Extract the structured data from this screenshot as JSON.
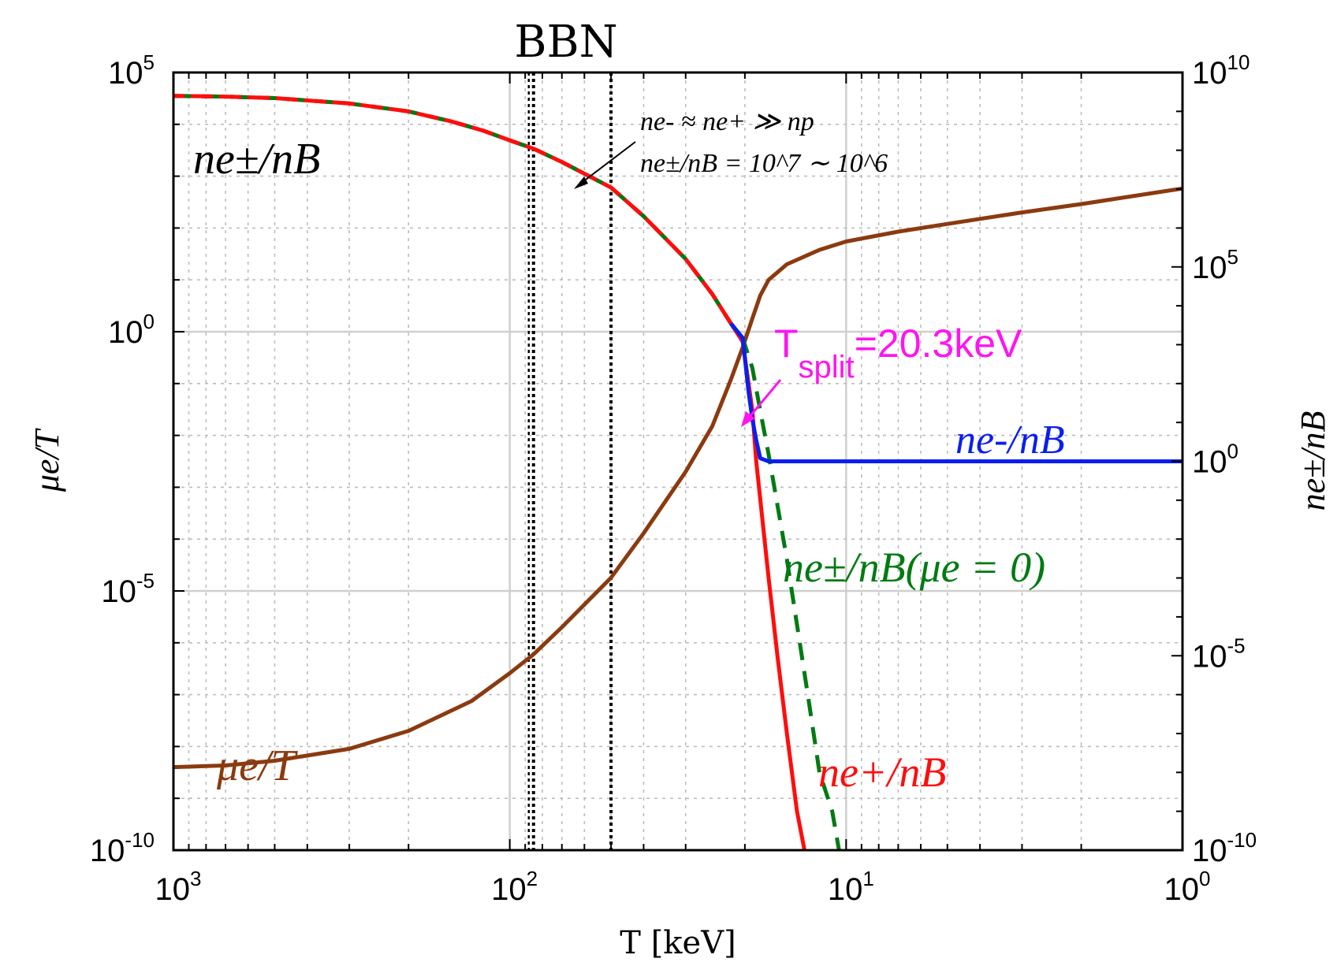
{
  "chart_data": {
    "type": "line",
    "title": "BBN",
    "xlabel": "T [keV]",
    "ylabel_left": "μe/T",
    "ylabel_right": "ne±/nB",
    "x_scale": "log",
    "x_reversed": true,
    "xlim": [
      1000,
      1
    ],
    "ylim_left": [
      1e-10,
      100000.0
    ],
    "ylim_right": [
      1e-10,
      10000000000.0
    ],
    "grid": true,
    "x_ticks": [
      {
        "base": "10",
        "exp": "3"
      },
      {
        "base": "10",
        "exp": "2"
      },
      {
        "base": "10",
        "exp": "1"
      },
      {
        "base": "10",
        "exp": "0"
      }
    ],
    "y_left_ticks": [
      {
        "base": "10",
        "exp": "5"
      },
      {
        "base": "10",
        "exp": "0"
      },
      {
        "base": "10",
        "exp": "-5"
      },
      {
        "base": "10",
        "exp": "-10"
      }
    ],
    "y_right_ticks": [
      {
        "base": "10",
        "exp": "10"
      },
      {
        "base": "10",
        "exp": "5"
      },
      {
        "base": "10",
        "exp": "0"
      },
      {
        "base": "10",
        "exp": "-5"
      },
      {
        "base": "10",
        "exp": "-10"
      }
    ],
    "bbn_lines_T": [
      85,
      50
    ],
    "series": [
      {
        "name": "μe/T",
        "axis": "left",
        "color": "#8b3a0f",
        "style": "solid",
        "x": [
          1000,
          700,
          500,
          300,
          200,
          130,
          100,
          85,
          70,
          50,
          40,
          30,
          25,
          22,
          20.3,
          19,
          18,
          17,
          15,
          12,
          10,
          7,
          5,
          3,
          2,
          1
        ],
        "y": [
          4e-09,
          4.3e-09,
          5.3e-09,
          9e-09,
          2e-08,
          7.5e-08,
          2.6e-07,
          6e-07,
          2e-06,
          1.8e-05,
          0.00013,
          0.002,
          0.015,
          0.12,
          0.5,
          1.8,
          5,
          10,
          20,
          38,
          55,
          85,
          120,
          200,
          290,
          580
        ]
      },
      {
        "name": "ne±/nB",
        "axis": "right",
        "color": "#007a12",
        "style": "dashed",
        "x": [
          1000,
          700,
          500,
          300,
          200,
          150,
          120,
          100,
          85,
          70,
          50,
          40,
          30,
          25,
          22,
          20.3,
          19,
          18,
          17,
          15,
          13,
          12,
          11,
          10.5
        ],
        "y": [
          2500000000.0,
          2400000000.0,
          2200000000.0,
          1600000000.0,
          1000000000.0,
          560000000.0,
          320000000.0,
          180000000.0,
          110000000.0,
          50000000.0,
          11000000.0,
          2000000.0,
          160000.0,
          20000.0,
          3500.0,
          1500.0,
          250.0,
          20,
          1.5,
          0.003,
          1e-06,
          1e-08,
          1e-09,
          1e-10
        ]
      },
      {
        "name": "ne+/nB",
        "axis": "right",
        "color": "#ff0d0d",
        "style": "solid",
        "x": [
          1000,
          700,
          500,
          300,
          200,
          150,
          120,
          100,
          85,
          70,
          50,
          40,
          30,
          25,
          22,
          20.3,
          19,
          18.5,
          17,
          16,
          15,
          14,
          13.3
        ],
        "y": [
          2500000000.0,
          2400000000.0,
          2200000000.0,
          1600000000.0,
          1000000000.0,
          560000000.0,
          320000000.0,
          180000000.0,
          110000000.0,
          50000000.0,
          11000000.0,
          2000000.0,
          160000.0,
          20000.0,
          3500.0,
          1200.0,
          20,
          1,
          0.001,
          1e-05,
          1e-07,
          1e-09,
          1e-10
        ]
      },
      {
        "name": "ne-/nB",
        "axis": "right",
        "color": "#0a1ef0",
        "style": "solid",
        "x": [
          22,
          20.3,
          19.5,
          19,
          18.5,
          18,
          17,
          10,
          5,
          2,
          1
        ],
        "y": [
          3500.0,
          1500.0,
          60,
          12,
          3.5,
          1.2,
          1,
          1,
          1,
          1,
          1
        ]
      }
    ],
    "annotations": {
      "relation_line1": "ne- ≈ ne+ ≫ np",
      "relation_line2": "ne±/nB = 10^7 ∼ 10^6",
      "t_split_label": "T",
      "t_split_sub": "split",
      "t_split_value": "=20.3keV"
    },
    "labels": {
      "ne_pm_top": "ne±/nB",
      "mu_e_T": "μe/T",
      "ne_minus": "ne-/nB",
      "ne_pm_mu0": "ne±/nB(μe = 0)",
      "ne_plus": "ne+/nB"
    }
  }
}
